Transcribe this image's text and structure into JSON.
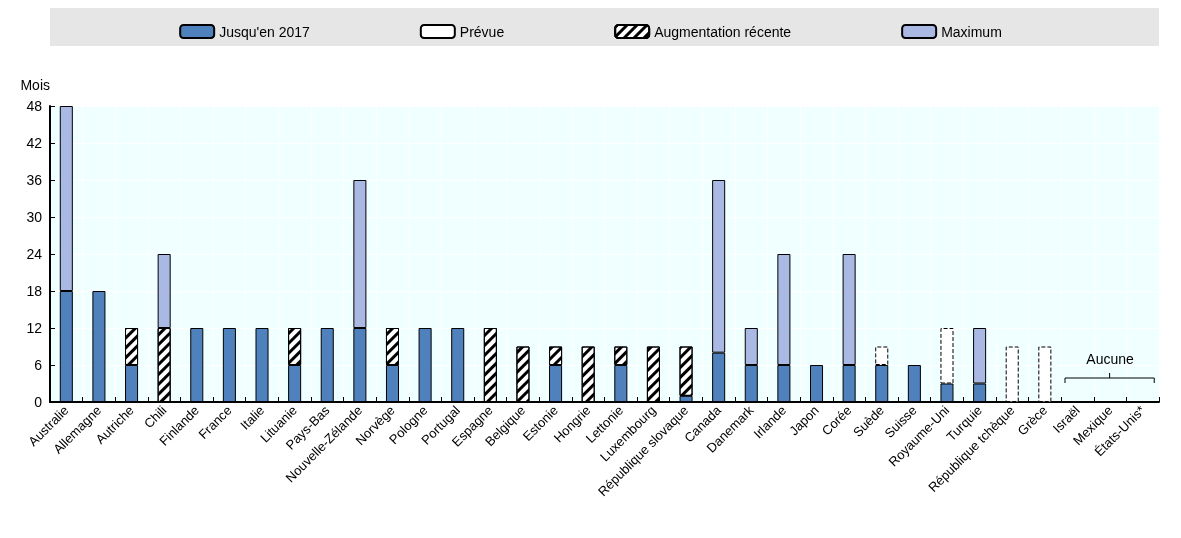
{
  "chart_data": {
    "type": "bar",
    "ylabel": "Mois",
    "stacked": true,
    "categories": [
      "Australie",
      "Allemagne",
      "Autriche",
      "Chili",
      "Finlande",
      "France",
      "Italie",
      "Lituanie",
      "Pays-Bas",
      "Nouvelle-Zélande",
      "Norvège",
      "Pologne",
      "Portugal",
      "Espagne",
      "Belgique",
      "Estonie",
      "Hongrie",
      "Lettonie",
      "Luxembourg",
      "République slovaque",
      "Canada",
      "Danemark",
      "Irlande",
      "Japon",
      "Corée",
      "Suède",
      "Suisse",
      "Royaume-Uni",
      "Turquie",
      "République tchèque",
      "Grèce",
      "Israël",
      "Mexique",
      "États-Unis*"
    ],
    "series": [
      {
        "name": "Jusqu'en 2017",
        "color": "#4f81bd",
        "values": [
          18,
          18,
          6,
          null,
          12,
          12,
          12,
          6,
          12,
          12,
          6,
          12,
          12,
          null,
          null,
          6,
          null,
          6,
          null,
          1,
          8,
          6,
          6,
          6,
          6,
          6,
          6,
          3,
          3,
          null,
          null,
          null,
          null,
          null
        ]
      },
      {
        "name": "Prévue",
        "color": "#000000",
        "line_style": "dashed",
        "values": [
          null,
          null,
          null,
          null,
          null,
          null,
          null,
          null,
          null,
          null,
          null,
          null,
          null,
          null,
          null,
          null,
          null,
          null,
          null,
          null,
          null,
          null,
          null,
          null,
          null,
          3,
          null,
          9,
          null,
          9,
          9,
          null,
          null,
          null
        ]
      },
      {
        "name": "Augmentation récente",
        "color": "#000000",
        "values": [
          null,
          null,
          6,
          12,
          null,
          null,
          null,
          6,
          null,
          null,
          6,
          null,
          null,
          12,
          9,
          3,
          9,
          3,
          9,
          8,
          null,
          null,
          null,
          null,
          null,
          null,
          null,
          null,
          null,
          null,
          null,
          null,
          null,
          null
        ]
      },
      {
        "name": "Maximum",
        "color": "#a9b9e3",
        "values": [
          30,
          null,
          null,
          12,
          null,
          null,
          null,
          null,
          null,
          24,
          null,
          null,
          null,
          null,
          null,
          null,
          null,
          null,
          null,
          null,
          28,
          6,
          18,
          null,
          18,
          null,
          null,
          null,
          9,
          null,
          null,
          null,
          null,
          null
        ]
      }
    ],
    "ylim": [
      0,
      48
    ],
    "yticks": [
      0,
      6,
      12,
      18,
      24,
      30,
      36,
      42,
      48
    ],
    "grid": true,
    "legend": "top",
    "annotations": [
      "Aucune"
    ]
  }
}
